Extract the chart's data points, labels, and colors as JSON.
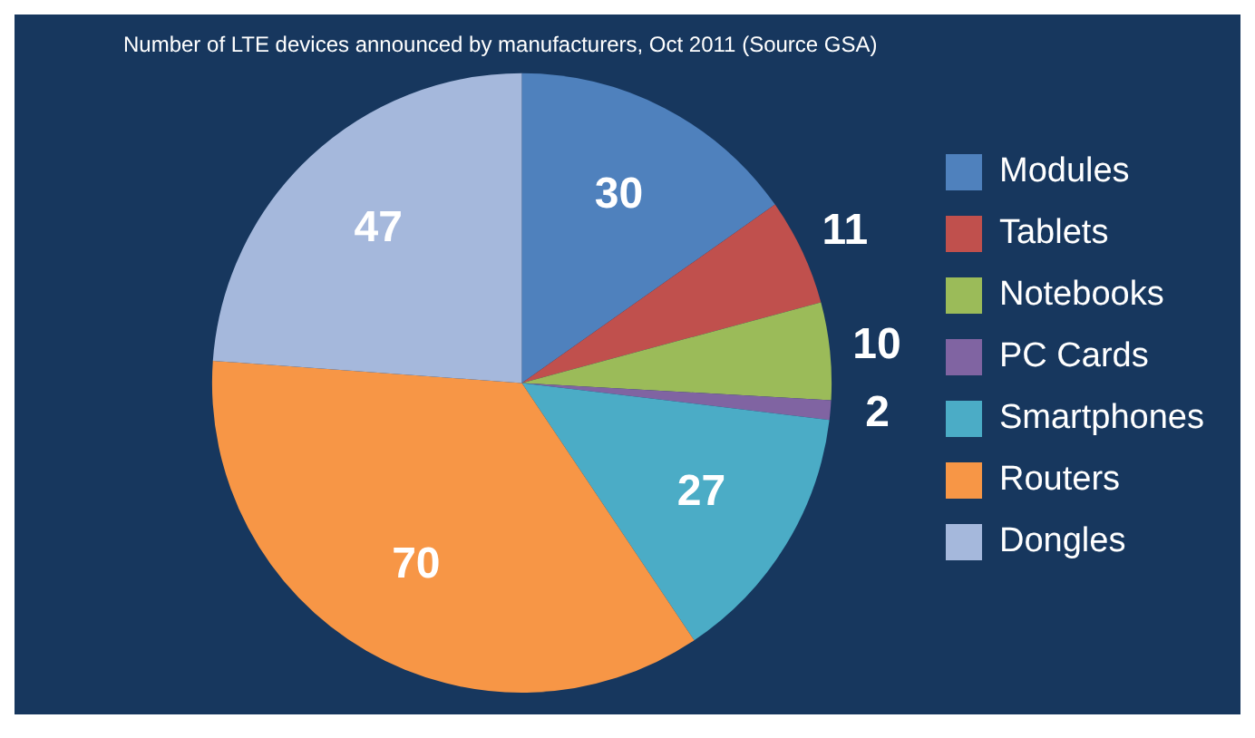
{
  "chart_data": {
    "type": "pie",
    "title": "Number of LTE devices announced by manufacturers, Oct 2011 (Source GSA)",
    "categories": [
      "Modules",
      "Tablets",
      "Notebooks",
      "PC Cards",
      "Smartphones",
      "Routers",
      "Dongles"
    ],
    "values": [
      30,
      11,
      10,
      2,
      27,
      70,
      47
    ],
    "colors": [
      "#4f81bd",
      "#c0504d",
      "#9bbb59",
      "#8064a2",
      "#4bacc6",
      "#f79646",
      "#a5b8dc"
    ],
    "legend": "right",
    "data_labels": true
  }
}
